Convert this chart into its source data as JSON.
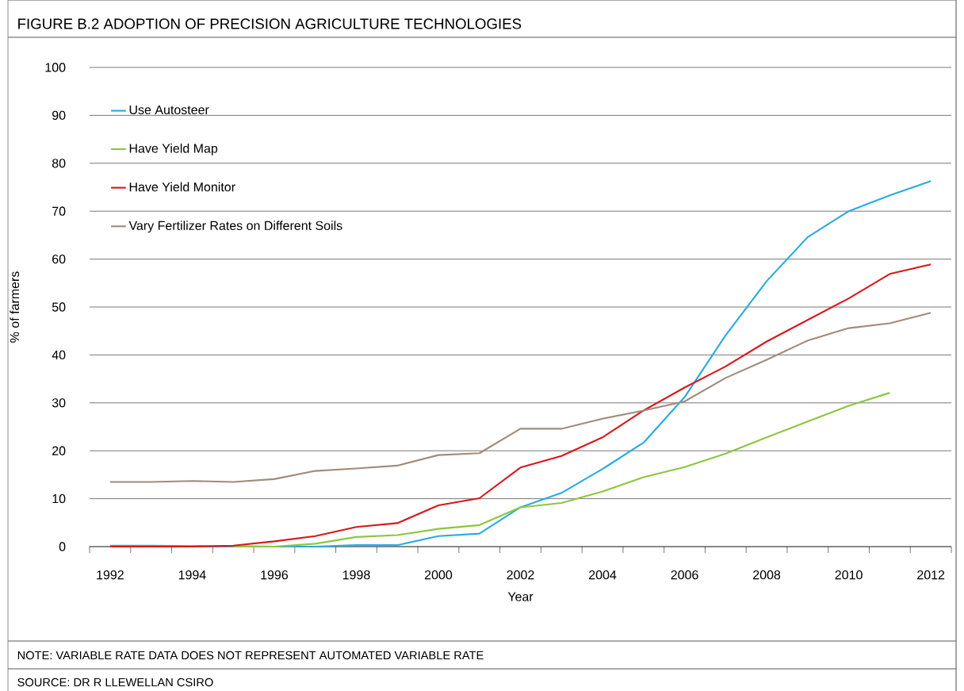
{
  "chart_data": {
    "type": "line",
    "title": "FIGURE B.2 ADOPTION OF PRECISION AGRICULTURE TECHNOLOGIES",
    "xlabel": "Year",
    "ylabel": "% of farmers",
    "categories": [
      "1992",
      null,
      "1994",
      null,
      "1996",
      null,
      "1998",
      null,
      "2000",
      null,
      "2002",
      null,
      "2004",
      null,
      "2006",
      null,
      "2008",
      null,
      "2010",
      null,
      "2012"
    ],
    "series": [
      {
        "name": "Use Autosteer",
        "color": "#29abe2",
        "values": [
          0.2,
          0.2,
          0.1,
          0.1,
          0,
          0,
          0.3,
          0.3,
          2.2,
          2.7,
          8.2,
          11.2,
          16.2,
          21.7,
          31.2,
          44.1,
          55.4,
          64.6,
          70,
          73.3,
          76.3
        ]
      },
      {
        "name": "Have Yield Map",
        "color": "#8dc63f",
        "values": [
          null,
          null,
          null,
          0,
          0,
          0.6,
          2.0,
          2.4,
          3.7,
          4.5,
          8.2,
          9.1,
          11.5,
          14.5,
          16.6,
          19.4,
          22.8,
          26.1,
          29.4,
          32.1,
          null
        ]
      },
      {
        "name": "Have Yield Monitor",
        "color": "#d7191c",
        "values": [
          0,
          0,
          0,
          0.2,
          1.1,
          2.2,
          4.1,
          4.9,
          8.6,
          10.1,
          16.5,
          18.9,
          22.8,
          28.4,
          33.2,
          37.6,
          42.8,
          47.3,
          51.8,
          56.9,
          58.9
        ]
      },
      {
        "name": "Vary Fertilizer Rates on Different Soils",
        "color": "#a08c7d",
        "values": [
          13.5,
          13.5,
          13.7,
          13.5,
          14.1,
          15.8,
          16.3,
          16.9,
          19.1,
          19.5,
          24.6,
          24.6,
          26.7,
          28.4,
          30.3,
          35.2,
          39,
          43,
          45.6,
          46.6,
          48.8
        ]
      }
    ],
    "ylim": [
      0,
      100
    ],
    "yticks": [
      0,
      10,
      20,
      30,
      40,
      50,
      60,
      70,
      80,
      90,
      100
    ],
    "grid": "y",
    "legend": "top left",
    "marker": "none",
    "line_style": "solid",
    "annotations": [
      "NOTE: VARIABLE RATE DATA DOES NOT REPRESENT AUTOMATED VARIABLE RATE",
      "SOURCE: DR R LLEWELLAN CSIRO"
    ]
  }
}
